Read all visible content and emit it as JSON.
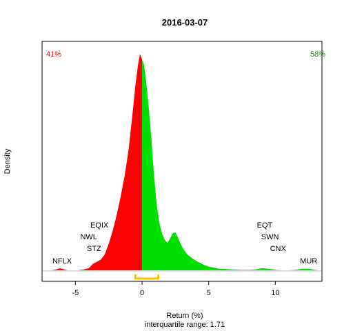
{
  "chart_data": {
    "type": "area",
    "title": "2016-03-07",
    "xlabel": "Return (%)",
    "ylabel": "Density",
    "subtitle": "interquartile range: 1.71",
    "xlim": [
      -7.5,
      13.5
    ],
    "ylim": [
      0,
      0.42
    ],
    "x_ticks": [
      -5,
      0,
      5,
      10
    ],
    "x_tick_labels": [
      "-5",
      "0",
      "10"
    ],
    "x_tick_label_5": "5",
    "grid": false,
    "split_at": 0,
    "left_share": "41%",
    "right_share": "58%",
    "colors": {
      "negative": "#ff0000",
      "positive": "#00e000",
      "iqr": "#ffc000",
      "baseline": "#bebebe"
    },
    "density": {
      "x": [
        -7.2,
        -6.8,
        -6.4,
        -6.2,
        -6.0,
        -5.6,
        -5.2,
        -4.8,
        -4.4,
        -4.0,
        -3.7,
        -3.4,
        -3.1,
        -2.8,
        -2.5,
        -2.2,
        -1.9,
        -1.6,
        -1.3,
        -1.0,
        -0.7,
        -0.5,
        -0.3,
        -0.15,
        0.0,
        0.15,
        0.3,
        0.5,
        0.7,
        0.9,
        1.1,
        1.3,
        1.5,
        1.7,
        1.9,
        2.1,
        2.3,
        2.5,
        2.7,
        2.9,
        3.1,
        3.4,
        3.8,
        4.2,
        4.6,
        5.0,
        5.4,
        5.8,
        6.2,
        6.6,
        7.0,
        7.5,
        8.0,
        8.5,
        9.0,
        9.5,
        10.0,
        10.5,
        11.0,
        11.5,
        12.0,
        12.5,
        13.0,
        13.3
      ],
      "y": [
        0.0,
        0.0,
        0.002,
        0.004,
        0.003,
        0.0,
        0.0,
        0.0,
        0.0015,
        0.004,
        0.012,
        0.016,
        0.02,
        0.03,
        0.05,
        0.075,
        0.105,
        0.14,
        0.18,
        0.23,
        0.3,
        0.35,
        0.39,
        0.41,
        0.4,
        0.39,
        0.36,
        0.31,
        0.25,
        0.18,
        0.125,
        0.09,
        0.07,
        0.058,
        0.052,
        0.06,
        0.07,
        0.072,
        0.062,
        0.05,
        0.04,
        0.03,
        0.022,
        0.016,
        0.011,
        0.007,
        0.005,
        0.003,
        0.0025,
        0.002,
        0.0015,
        0.001,
        0.0008,
        0.0015,
        0.004,
        0.003,
        0.001,
        0.0,
        0.0,
        0.001,
        0.003,
        0.003,
        0.001,
        0.0
      ]
    },
    "iqr": [
      -0.5,
      1.21
    ],
    "outlier_labels": [
      {
        "text": "NFLX",
        "x": -6.0,
        "row": 1
      },
      {
        "text": "STZ",
        "x": -3.6,
        "row": 2
      },
      {
        "text": "NWL",
        "x": -4.0,
        "row": 3
      },
      {
        "text": "EQIX",
        "x": -3.2,
        "row": 4
      },
      {
        "text": "MUR",
        "x": 12.5,
        "row": 1
      },
      {
        "text": "CNX",
        "x": 10.2,
        "row": 2
      },
      {
        "text": "SWN",
        "x": 9.6,
        "row": 3
      },
      {
        "text": "EQT",
        "x": 9.2,
        "row": 4
      }
    ]
  }
}
